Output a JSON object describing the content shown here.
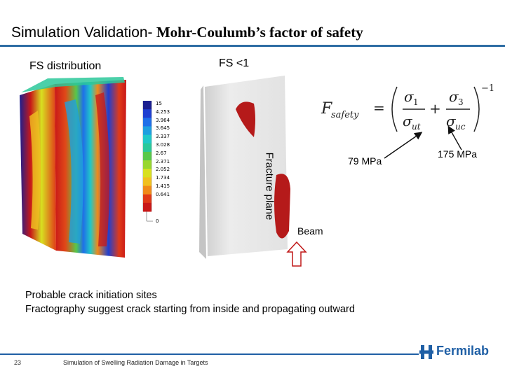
{
  "slide": {
    "title_sans": "Simulation Validation-",
    "title_serif": " Mohr-Coulumb’s factor of safety",
    "fs_distribution_label": "FS distribution",
    "fs_lt1_label": "FS <1",
    "fracture_plane_label": "Fracture plane",
    "stress_ut_label": "79 MPa",
    "stress_uc_label": "175 MPa",
    "beam_label": "Beam",
    "text_line1": "Probable crack initiation sites",
    "text_line2": "Fractography suggest crack starting from inside and propagating outward",
    "page_number": "23",
    "footer_text": "Simulation of Swelling Radiation Damage in Targets",
    "logo_text": "Fermilab"
  },
  "colorbar": {
    "ticks": [
      "15",
      "4.253",
      "3.964",
      "3.645",
      "3.337",
      "3.028",
      "2.67",
      "2.371",
      "2.052",
      "1.734",
      "1.415",
      "0.641",
      "0"
    ],
    "colors": [
      "#1b1f8f",
      "#1f3fd0",
      "#1f6fe8",
      "#1e9fe0",
      "#20c8c8",
      "#2bc89a",
      "#58c84a",
      "#98d630",
      "#d8e020",
      "#f0c020",
      "#f08a1a",
      "#e03a18",
      "#c81818"
    ]
  },
  "equation": {
    "lhs": "F",
    "lhs_sub": "safety",
    "sigma1": "σ",
    "sigma1_sub": "1",
    "sigma3": "σ",
    "sigma3_sub": "3",
    "denom1": "σ",
    "denom1_sub": "ut",
    "denom3": "σ",
    "denom3_sub": "uc",
    "exponent": "−1"
  },
  "colors": {
    "title_rule": "#2e6da4",
    "footer_rule": "#1f5fa5",
    "fracture_red": "#b51a1a",
    "block_grey": "#e6e6e6"
  }
}
